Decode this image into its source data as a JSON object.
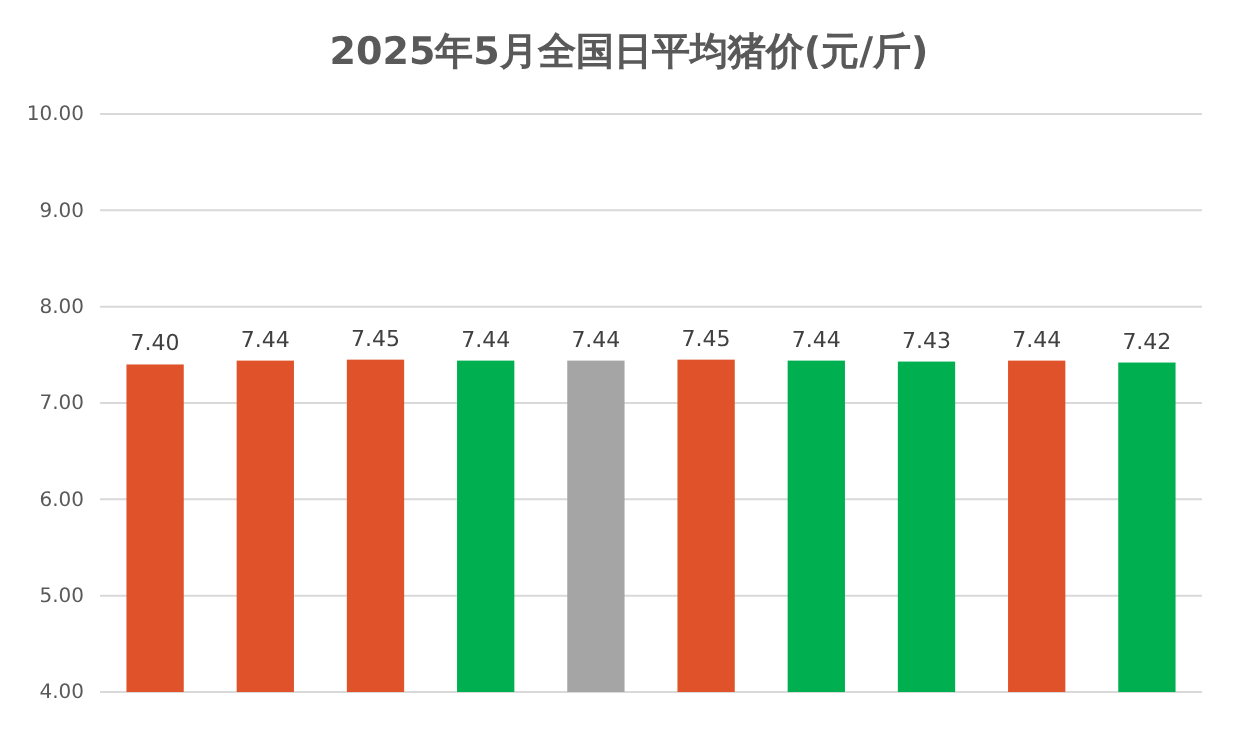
{
  "chart_data": {
    "type": "bar",
    "title": "2025年5月全国日平均猪价(元/斤)",
    "categories": [
      null,
      null,
      null,
      null,
      null,
      null,
      null,
      null,
      null,
      null
    ],
    "values": [
      7.4,
      7.44,
      7.45,
      7.44,
      7.44,
      7.45,
      7.44,
      7.43,
      7.44,
      7.42
    ],
    "value_labels": [
      "7.40",
      "7.44",
      "7.45",
      "7.44",
      "7.44",
      "7.45",
      "7.44",
      "7.43",
      "7.44",
      "7.42"
    ],
    "colors": [
      "#e0532a",
      "#e0532a",
      "#e0532a",
      "#00b050",
      "#a5a5a5",
      "#e0532a",
      "#00b050",
      "#00b050",
      "#e0532a",
      "#00b050"
    ],
    "ylim": [
      4,
      10
    ],
    "yticks": [
      {
        "value": 4,
        "label": "4.00"
      },
      {
        "value": 5,
        "label": "5.00"
      },
      {
        "value": 6,
        "label": "6.00"
      },
      {
        "value": 7,
        "label": "7.00"
      },
      {
        "value": 8,
        "label": "8.00"
      },
      {
        "value": 9,
        "label": "9.00"
      },
      {
        "value": 10,
        "label": "10.00"
      }
    ],
    "grid": "y"
  }
}
